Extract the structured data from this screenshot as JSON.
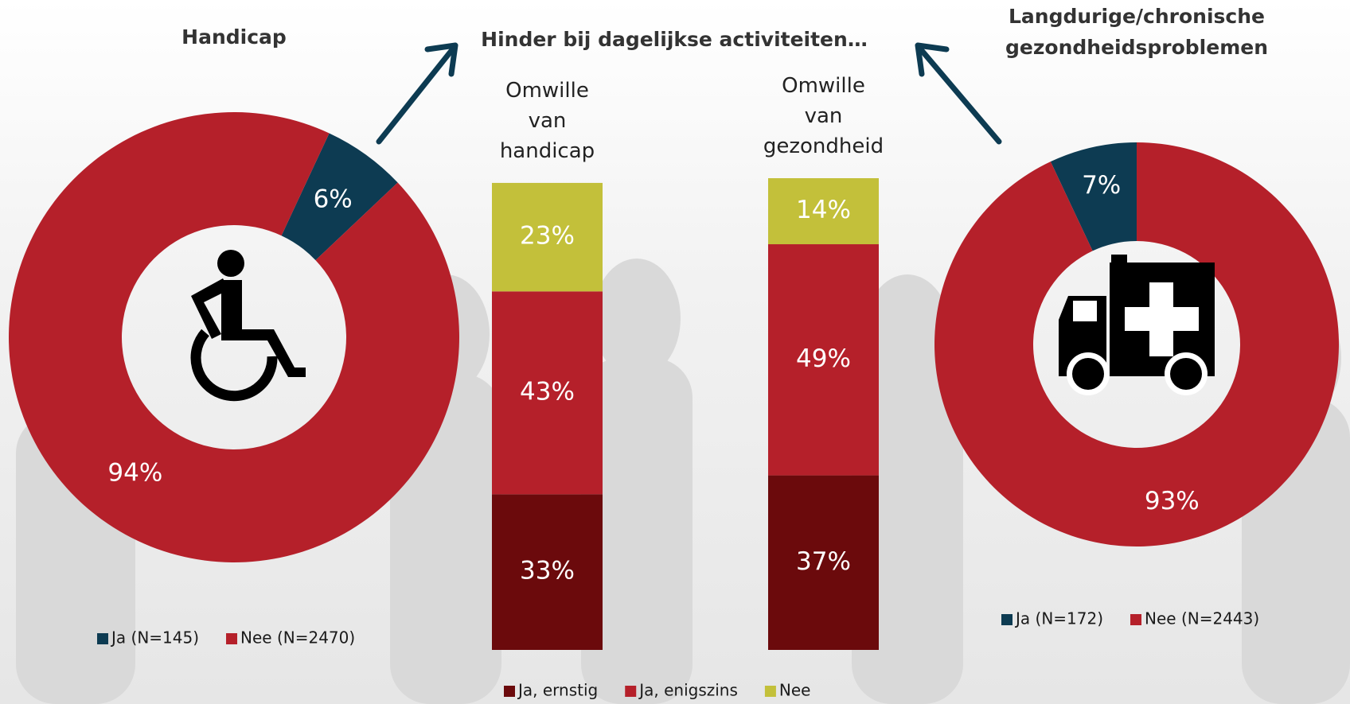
{
  "chart_data": [
    {
      "type": "donut",
      "title": "Handicap",
      "categories": [
        "Ja (N=145)",
        "Nee (N=2470)"
      ],
      "values": [
        6,
        94
      ],
      "value_labels": [
        "6%",
        "94%"
      ],
      "colors": [
        "#0d3b52",
        "#b5202a"
      ]
    },
    {
      "type": "bar",
      "stacked": true,
      "title": "Hinder bij dagelijkse activiteiten…",
      "categories": [
        "Omwille van handicap",
        "Omwille van gezondheid"
      ],
      "series": [
        {
          "name": "Ja, ernstig",
          "color": "#6b0a0c",
          "values": [
            33,
            37
          ],
          "value_labels": [
            "33%",
            "37%"
          ]
        },
        {
          "name": "Ja, enigszins",
          "color": "#b5202a",
          "values": [
            43,
            49
          ],
          "value_labels": [
            "43%",
            "49%"
          ]
        },
        {
          "name": "Nee",
          "color": "#c3c03a",
          "values": [
            23,
            14
          ],
          "value_labels": [
            "23%",
            "14%"
          ]
        }
      ],
      "ylim": [
        0,
        100
      ]
    },
    {
      "type": "donut",
      "title": "Langdurige/chronische gezondheidsproblemen",
      "categories": [
        "Ja (N=172)",
        "Nee (N=2443)"
      ],
      "values": [
        7,
        93
      ],
      "value_labels": [
        "7%",
        "93%"
      ],
      "colors": [
        "#0d3b52",
        "#b5202a"
      ]
    }
  ]
}
